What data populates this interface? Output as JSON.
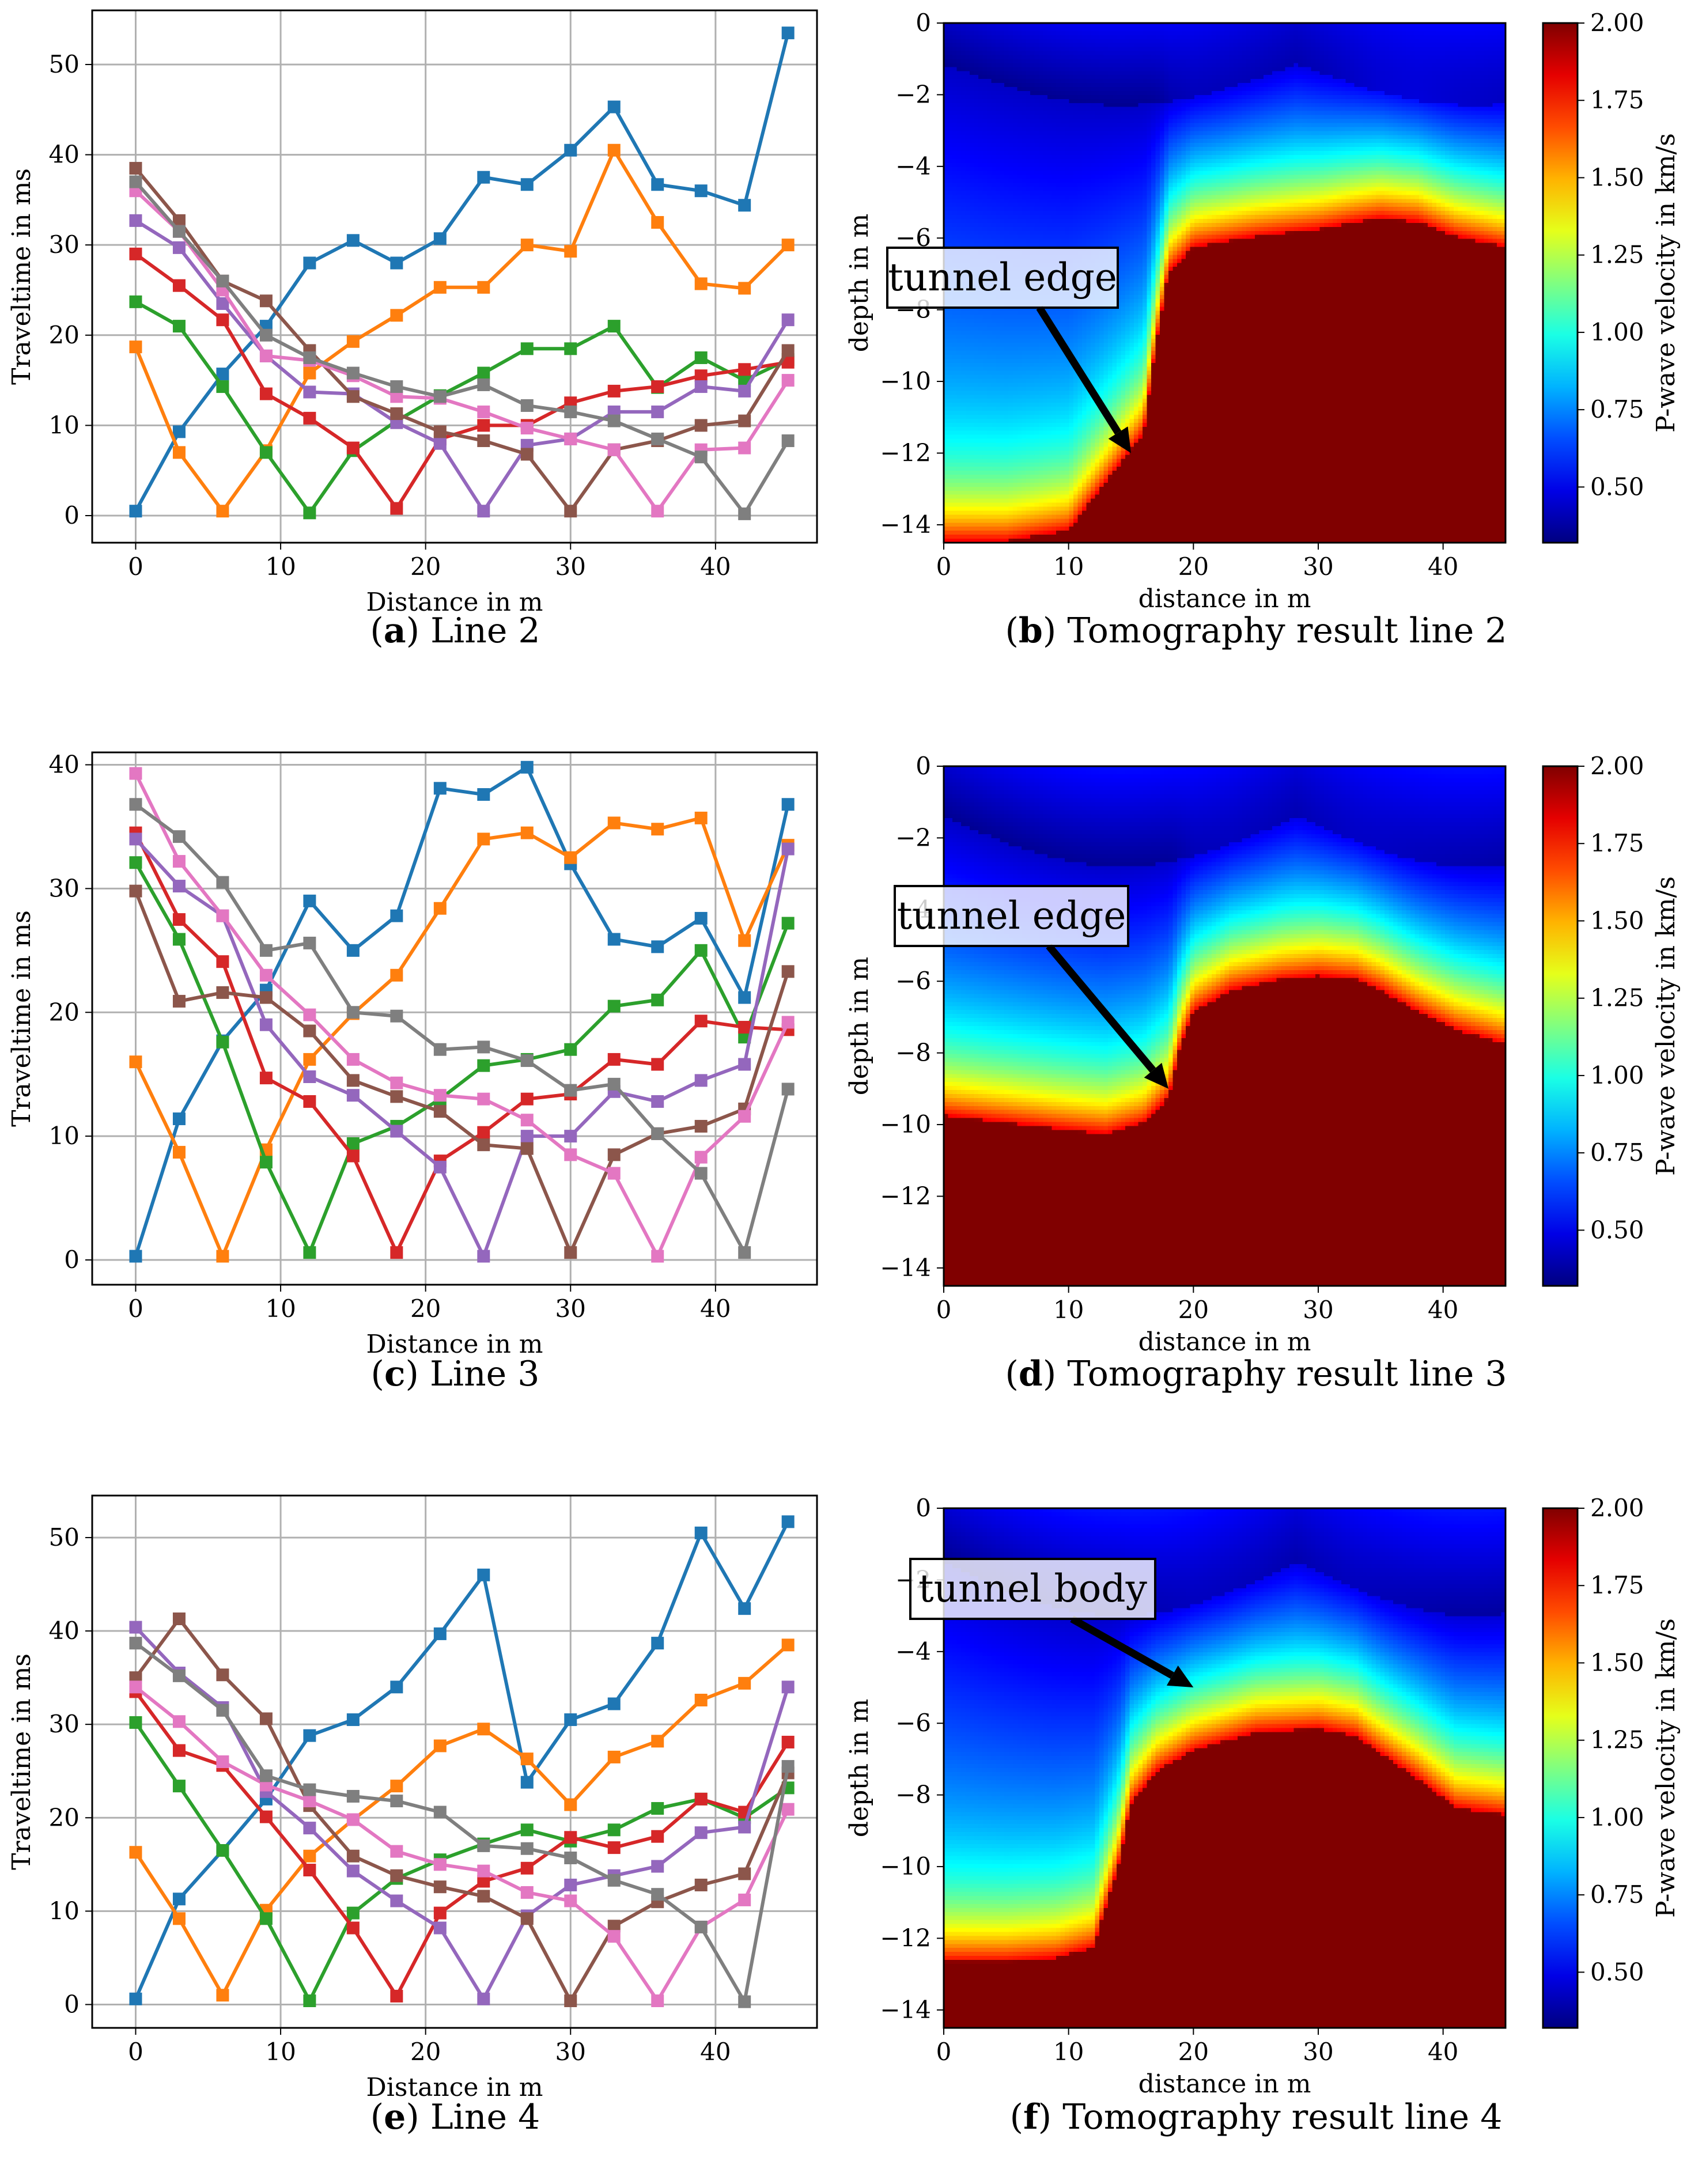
{
  "chart_data": [
    {
      "id": "a",
      "type": "line",
      "caption_letter": "a",
      "caption_text": "Line 2",
      "xlabel": "Distance in m",
      "ylabel": "Traveltime in ms",
      "xlim": [
        -3,
        47
      ],
      "ylim": [
        -3,
        56
      ],
      "xticks": [
        0,
        10,
        20,
        30,
        40
      ],
      "yticks": [
        0,
        10,
        20,
        30,
        40,
        50
      ],
      "grid": true,
      "marker": "square",
      "x": [
        0,
        3,
        6,
        9,
        12,
        15,
        18,
        21,
        24,
        27,
        30,
        33,
        36,
        39,
        42,
        45
      ],
      "series": [
        {
          "color": "#1f77b4",
          "values": [
            0.5,
            9.3,
            15.7,
            21,
            28,
            30.5,
            28,
            30.7,
            37.5,
            36.7,
            40.5,
            45.3,
            36.7,
            36,
            34.4,
            53.5
          ]
        },
        {
          "color": "#ff7f0e",
          "values": [
            18.7,
            7,
            0.5,
            7.2,
            15.8,
            19.3,
            22.2,
            25.3,
            25.3,
            30,
            29.3,
            40.5,
            32.5,
            25.7,
            25.2,
            30
          ]
        },
        {
          "color": "#2ca02c",
          "values": [
            23.7,
            21,
            14.3,
            7,
            0.3,
            7.2,
            10.5,
            13.3,
            15.8,
            18.5,
            18.5,
            21,
            14.2,
            17.5,
            15,
            17.3
          ]
        },
        {
          "color": "#d62728",
          "values": [
            29,
            25.5,
            21.7,
            13.5,
            10.8,
            7.5,
            0.8,
            8.5,
            10,
            10,
            12.5,
            13.8,
            14.3,
            15.5,
            16.2,
            17
          ]
        },
        {
          "color": "#9467bd",
          "values": [
            32.7,
            29.7,
            23.5,
            17.7,
            13.7,
            13.5,
            10.3,
            8,
            0.5,
            7.8,
            8.5,
            11.5,
            11.5,
            14.3,
            13.8,
            21.7
          ]
        },
        {
          "color": "#8c564b",
          "values": [
            38.5,
            32.7,
            26,
            23.8,
            18.3,
            13.2,
            11.3,
            9.3,
            8.3,
            6.8,
            0.5,
            7.3,
            8.3,
            10,
            10.5,
            18.3
          ]
        },
        {
          "color": "#e377c2",
          "values": [
            36,
            31.5,
            25,
            17.7,
            17.2,
            15.5,
            13.2,
            13,
            11.5,
            9.7,
            8.5,
            7.3,
            0.5,
            7.3,
            7.5,
            15
          ]
        },
        {
          "color": "#7f7f7f",
          "values": [
            37,
            31.5,
            26,
            20,
            17.5,
            15.8,
            14.3,
            13.2,
            14.5,
            12.2,
            11.5,
            10.5,
            8.5,
            6.5,
            0.2,
            8.3
          ]
        }
      ]
    },
    {
      "id": "b",
      "type": "heatmap",
      "caption_letter": "b",
      "caption_text": "Tomography result line 2",
      "xlabel": "distance in m",
      "ylabel": "depth in m",
      "colorbar_label": "P-wave velocity in km/s",
      "colormap": "jet",
      "xlim": [
        0,
        45
      ],
      "ylim": [
        -14.5,
        0
      ],
      "xticks": [
        0,
        10,
        20,
        30,
        40
      ],
      "yticks": [
        0,
        -2,
        -4,
        -6,
        -8,
        -10,
        -12,
        -14
      ],
      "clim": [
        0.32,
        2.0
      ],
      "cticks": [
        0.5,
        0.75,
        1.0,
        1.25,
        1.5,
        1.75,
        2.0
      ],
      "cticklabels": [
        "0.50",
        "0.75",
        "1.00",
        "1.25",
        "1.50",
        "1.75",
        "2.00"
      ],
      "boundary_x": [
        0,
        5,
        10,
        14,
        16,
        17,
        18,
        20,
        25,
        30,
        33,
        35,
        38,
        41,
        45
      ],
      "boundary_depth": [
        -14.5,
        -14.5,
        -14.2,
        -12.4,
        -11.5,
        -9.0,
        -7.0,
        -6.3,
        -6.0,
        -5.8,
        -5.6,
        -5.5,
        -5.6,
        -6.0,
        -6.3
      ],
      "low_velocity_depth": 2.3,
      "annotation": {
        "text": "tunnel edge",
        "arrow_to": [
          15,
          -12
        ]
      }
    },
    {
      "id": "c",
      "type": "line",
      "caption_letter": "c",
      "caption_text": "Line 3",
      "xlabel": "Distance in m",
      "ylabel": "Traveltime in ms",
      "xlim": [
        -3,
        47
      ],
      "ylim": [
        -2,
        41
      ],
      "xticks": [
        0,
        10,
        20,
        30,
        40
      ],
      "yticks": [
        0,
        10,
        20,
        30,
        40
      ],
      "grid": true,
      "marker": "square",
      "x": [
        0,
        3,
        6,
        9,
        12,
        15,
        18,
        21,
        24,
        27,
        30,
        33,
        36,
        39,
        42,
        45
      ],
      "series": [
        {
          "color": "#1f77b4",
          "values": [
            0.3,
            11.4,
            17.7,
            21.8,
            29,
            25,
            27.8,
            38.1,
            37.6,
            39.8,
            32,
            25.9,
            25.3,
            27.6,
            21.2,
            36.8
          ]
        },
        {
          "color": "#ff7f0e",
          "values": [
            16,
            8.7,
            0.3,
            8.9,
            16.2,
            19.9,
            23,
            28.4,
            34,
            34.5,
            32.5,
            35.3,
            34.8,
            35.7,
            25.8,
            33.5
          ]
        },
        {
          "color": "#2ca02c",
          "values": [
            32.1,
            25.9,
            17.6,
            7.9,
            0.6,
            9.4,
            10.8,
            13,
            15.7,
            16.2,
            17,
            20.5,
            21,
            25,
            18,
            27.2
          ]
        },
        {
          "color": "#d62728",
          "values": [
            34.5,
            27.5,
            24.1,
            14.7,
            12.8,
            8.4,
            0.6,
            8,
            10.3,
            13,
            13.4,
            16.2,
            15.8,
            19.3,
            18.8,
            18.6
          ]
        },
        {
          "color": "#9467bd",
          "values": [
            34,
            30.2,
            27.8,
            19,
            14.8,
            13.3,
            10.4,
            7.5,
            0.3,
            10,
            10,
            13.6,
            12.8,
            14.5,
            15.8,
            33.2
          ]
        },
        {
          "color": "#8c564b",
          "values": [
            29.8,
            20.9,
            21.6,
            21.2,
            18.5,
            14.5,
            13.2,
            12,
            9.3,
            9,
            0.6,
            8.5,
            10.2,
            10.8,
            12.2,
            23.3
          ]
        },
        {
          "color": "#e377c2",
          "values": [
            39.3,
            32.2,
            27.8,
            23,
            19.8,
            16.2,
            14.3,
            13.3,
            13,
            11.3,
            8.5,
            7,
            0.3,
            8.3,
            11.6,
            19.2
          ]
        },
        {
          "color": "#7f7f7f",
          "values": [
            36.8,
            34.2,
            30.5,
            25,
            25.6,
            20,
            19.7,
            17,
            17.2,
            16.1,
            13.7,
            14.2,
            10.2,
            7,
            0.6,
            13.8
          ]
        }
      ]
    },
    {
      "id": "d",
      "type": "heatmap",
      "caption_letter": "d",
      "caption_text": "Tomography result line 3",
      "xlabel": "distance in m",
      "ylabel": "depth in m",
      "colorbar_label": "P-wave velocity in km/s",
      "colormap": "jet",
      "xlim": [
        0,
        45
      ],
      "ylim": [
        -14.5,
        0
      ],
      "xticks": [
        0,
        10,
        20,
        30,
        40
      ],
      "yticks": [
        0,
        -2,
        -4,
        -6,
        -8,
        -10,
        -12,
        -14
      ],
      "clim": [
        0.32,
        2.0
      ],
      "cticks": [
        0.5,
        0.75,
        1.0,
        1.25,
        1.5,
        1.75,
        2.0
      ],
      "cticklabels": [
        "0.50",
        "0.75",
        "1.00",
        "1.25",
        "1.50",
        "1.75",
        "2.00"
      ],
      "boundary_x": [
        0,
        5,
        10,
        13,
        16,
        18,
        19,
        20,
        23,
        27,
        30,
        33,
        35,
        38,
        41,
        45
      ],
      "boundary_depth": [
        -9.8,
        -10.0,
        -10.2,
        -10.3,
        -10.0,
        -9.3,
        -7.8,
        -6.9,
        -6.3,
        -6.0,
        -5.9,
        -6.0,
        -6.3,
        -6.9,
        -7.4,
        -7.8
      ],
      "low_velocity_depth": 2.8,
      "annotation": {
        "text": "tunnel edge",
        "arrow_to": [
          18,
          -9
        ]
      }
    },
    {
      "id": "e",
      "type": "line",
      "caption_letter": "e",
      "caption_text": "Line 4",
      "xlabel": "Distance in m",
      "ylabel": "Traveltime in ms",
      "xlim": [
        -3,
        47
      ],
      "ylim": [
        -2.5,
        54.5
      ],
      "xticks": [
        0,
        10,
        20,
        30,
        40
      ],
      "yticks": [
        0,
        10,
        20,
        30,
        40,
        50
      ],
      "grid": true,
      "marker": "square",
      "x": [
        0,
        3,
        6,
        9,
        12,
        15,
        18,
        21,
        24,
        27,
        30,
        33,
        36,
        39,
        42,
        45
      ],
      "series": [
        {
          "color": "#1f77b4",
          "values": [
            0.6,
            11.3,
            16.5,
            22,
            28.8,
            30.5,
            34,
            39.7,
            46,
            23.8,
            30.5,
            32.2,
            38.7,
            50.5,
            42.4,
            51.7
          ]
        },
        {
          "color": "#ff7f0e",
          "values": [
            16.3,
            9.2,
            1,
            10.1,
            15.9,
            19.8,
            23.4,
            27.7,
            29.5,
            26.3,
            21.4,
            26.5,
            28.2,
            32.6,
            34.4,
            38.5
          ]
        },
        {
          "color": "#2ca02c",
          "values": [
            30.2,
            23.4,
            16.5,
            9.2,
            0.4,
            9.8,
            13.5,
            15.5,
            17.2,
            18.7,
            17.5,
            18.7,
            21,
            22,
            20,
            23.2
          ]
        },
        {
          "color": "#d62728",
          "values": [
            33.5,
            27.2,
            25.6,
            20.1,
            14.4,
            8.2,
            0.9,
            9.8,
            13.2,
            14.6,
            17.9,
            16.8,
            18,
            22,
            20.6,
            28.1
          ]
        },
        {
          "color": "#9467bd",
          "values": [
            40.4,
            35.5,
            31.8,
            22.8,
            18.9,
            14.3,
            11.1,
            8.2,
            0.6,
            9.5,
            12.8,
            13.8,
            14.8,
            18.4,
            19,
            34
          ]
        },
        {
          "color": "#8c564b",
          "values": [
            35,
            41.3,
            35.3,
            30.6,
            21.3,
            15.9,
            13.8,
            12.6,
            11.6,
            9.2,
            0.4,
            8.4,
            11,
            12.8,
            14,
            24.8
          ]
        },
        {
          "color": "#e377c2",
          "values": [
            34,
            30.3,
            26,
            23.5,
            21.8,
            19.8,
            16.4,
            15,
            14.3,
            12,
            11.1,
            7.3,
            0.4,
            8.3,
            11.2,
            20.9
          ]
        },
        {
          "color": "#7f7f7f",
          "values": [
            38.7,
            35.2,
            31.5,
            24.5,
            23,
            22.3,
            21.8,
            20.6,
            17,
            16.7,
            15.7,
            13.3,
            11.8,
            8.3,
            0.3,
            25.5
          ]
        }
      ]
    },
    {
      "id": "f",
      "type": "heatmap",
      "caption_letter": "f",
      "caption_text": "Tomography result line 4",
      "xlabel": "distance in m",
      "ylabel": "depth in m",
      "colorbar_label": "P-wave velocity in km/s",
      "colormap": "jet",
      "xlim": [
        0,
        45
      ],
      "ylim": [
        -14.5,
        0
      ],
      "xticks": [
        0,
        10,
        20,
        30,
        40
      ],
      "yticks": [
        0,
        -2,
        -4,
        -6,
        -8,
        -10,
        -12,
        -14
      ],
      "clim": [
        0.32,
        2.0
      ],
      "cticks": [
        0.5,
        0.75,
        1.0,
        1.25,
        1.5,
        1.75,
        2.0
      ],
      "cticklabels": [
        "0.50",
        "0.75",
        "1.00",
        "1.25",
        "1.50",
        "1.75",
        "2.00"
      ],
      "boundary_x": [
        0,
        5,
        9,
        12,
        14,
        15,
        17,
        20,
        25,
        30,
        33,
        35,
        38,
        41,
        45
      ],
      "boundary_depth": [
        -12.7,
        -12.7,
        -12.6,
        -12.3,
        -10.0,
        -8.3,
        -7.4,
        -6.8,
        -6.3,
        -6.2,
        -6.4,
        -6.9,
        -7.6,
        -8.4,
        -8.6
      ],
      "low_velocity_depth": 3.0,
      "annotation": {
        "text": "tunnel body",
        "arrow_to": [
          20,
          -5
        ]
      }
    }
  ]
}
